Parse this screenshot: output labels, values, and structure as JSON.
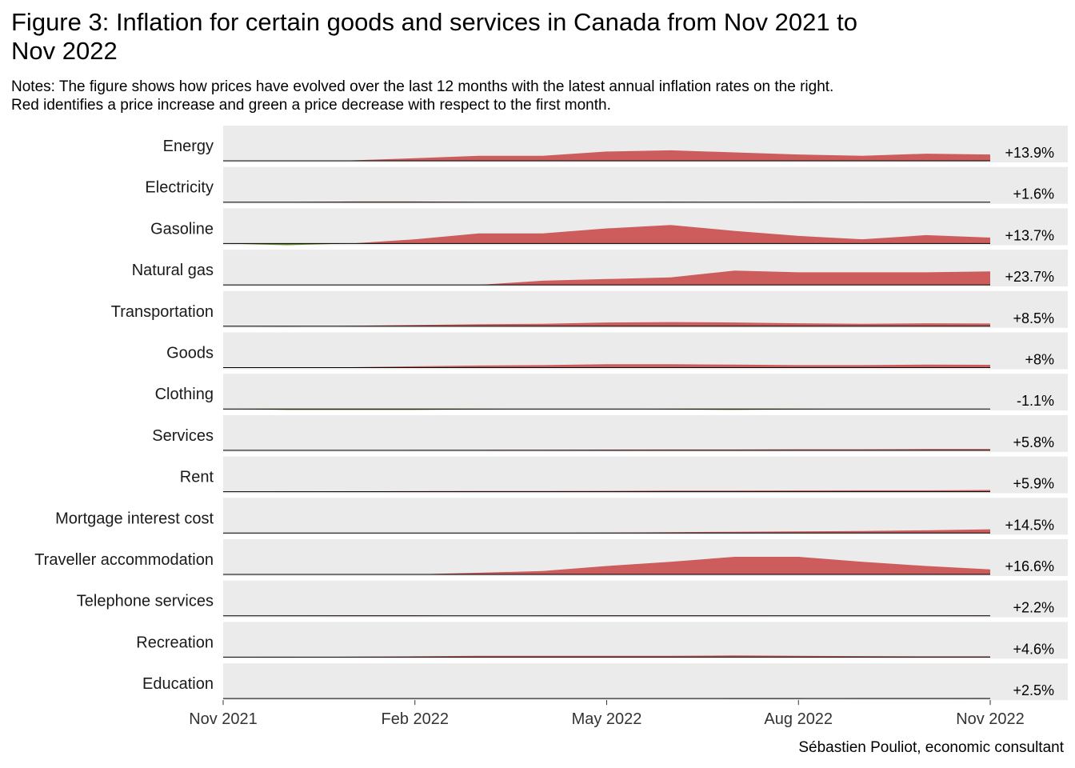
{
  "title": "Figure 3: Inflation for certain goods and services in Canada from Nov 2021 to\n Nov 2022",
  "notes": "Notes: The figure shows how prices have evolved over the last 12 months with the latest annual inflation rates on the right.\n Red identifies a price increase and green a price decrease with respect to the first month.",
  "caption": "Sébastien Pouliot, economic consultant",
  "colors": {
    "increase": "#cd5c5c",
    "decrease": "#6b8e23",
    "panel_bg": "#ebebeb",
    "baseline": "#000000"
  },
  "chart_data": {
    "type": "area",
    "x": [
      "2021-11",
      "2021-12",
      "2022-01",
      "2022-02",
      "2022-03",
      "2022-04",
      "2022-05",
      "2022-06",
      "2022-07",
      "2022-08",
      "2022-09",
      "2022-10",
      "2022-11"
    ],
    "x_ticks": [
      "Nov 2021",
      "Feb 2022",
      "May 2022",
      "Aug 2022",
      "Nov 2022"
    ],
    "value_unit": "% change relative to Nov 2021",
    "series": [
      {
        "name": "Energy",
        "label": "+13.9%",
        "values": [
          0,
          -0.5,
          0.5,
          3,
          6,
          6,
          11,
          12.5,
          10,
          7.5,
          6,
          8.5,
          7.5
        ]
      },
      {
        "name": "Electricity",
        "label": "+1.6%",
        "values": [
          0,
          0.1,
          0.8,
          0.8,
          0.3,
          0.3,
          0.3,
          0.4,
          0.1,
          0.4,
          0.2,
          0.3,
          0.3
        ]
      },
      {
        "name": "Gasoline",
        "label": "+13.7%",
        "values": [
          0,
          -2,
          0,
          5,
          12,
          12,
          18,
          22,
          15,
          9,
          5,
          10,
          7
        ]
      },
      {
        "name": "Natural gas",
        "label": "+23.7%",
        "values": [
          0,
          0,
          0,
          0,
          0,
          5,
          7,
          9,
          17,
          15,
          15,
          15,
          16
        ]
      },
      {
        "name": "Transportation",
        "label": "+8.5%",
        "values": [
          0,
          -0.5,
          0.5,
          1.5,
          2.5,
          3,
          4.5,
          5,
          4.5,
          3.5,
          3,
          3.5,
          3.2
        ]
      },
      {
        "name": "Goods",
        "label": "+8%",
        "values": [
          0,
          0,
          0.5,
          1.5,
          2.5,
          3,
          4,
          4,
          3.5,
          3,
          3,
          3.5,
          3.3
        ]
      },
      {
        "name": "Clothing",
        "label": "-1.1%",
        "values": [
          0,
          -1,
          -1,
          -1,
          -0.5,
          0,
          0,
          -0.5,
          -1,
          -0.5,
          0,
          0,
          0
        ]
      },
      {
        "name": "Services",
        "label": "+5.8%",
        "values": [
          0,
          0,
          0,
          0.5,
          0.5,
          0.7,
          0.9,
          1,
          1,
          1.2,
          1.2,
          1.5,
          1.5
        ]
      },
      {
        "name": "Rent",
        "label": "+5.9%",
        "values": [
          0,
          0.2,
          0.5,
          0.7,
          0.8,
          0.9,
          1,
          1.2,
          1.3,
          1.4,
          1.5,
          1.5,
          2
        ]
      },
      {
        "name": "Mortgage interest cost",
        "label": "+14.5%",
        "values": [
          0,
          0,
          0,
          0,
          0,
          0.2,
          0.5,
          1,
          1.5,
          2,
          2.5,
          3.2,
          4.5
        ]
      },
      {
        "name": "Traveller accommodation",
        "label": "+16.6%",
        "values": [
          0,
          -0.5,
          -0.5,
          0,
          2,
          4,
          10,
          15,
          21,
          21,
          15,
          10,
          6
        ]
      },
      {
        "name": "Telephone services",
        "label": "+2.2%",
        "values": [
          0,
          0.3,
          0.5,
          0.5,
          0,
          0.3,
          0.5,
          0.5,
          0.5,
          0.3,
          0.3,
          0.3,
          0.5
        ]
      },
      {
        "name": "Recreation",
        "label": "+4.6%",
        "values": [
          0,
          -0.2,
          0.5,
          1,
          1.5,
          1.5,
          1.5,
          1.5,
          2,
          1.5,
          1.2,
          1,
          1
        ]
      },
      {
        "name": "Education",
        "label": "+2.5%",
        "values": [
          0,
          0,
          0,
          0,
          0,
          0,
          0,
          0,
          -0.5,
          -0.5,
          0.3,
          0.4,
          0.5
        ]
      }
    ]
  }
}
